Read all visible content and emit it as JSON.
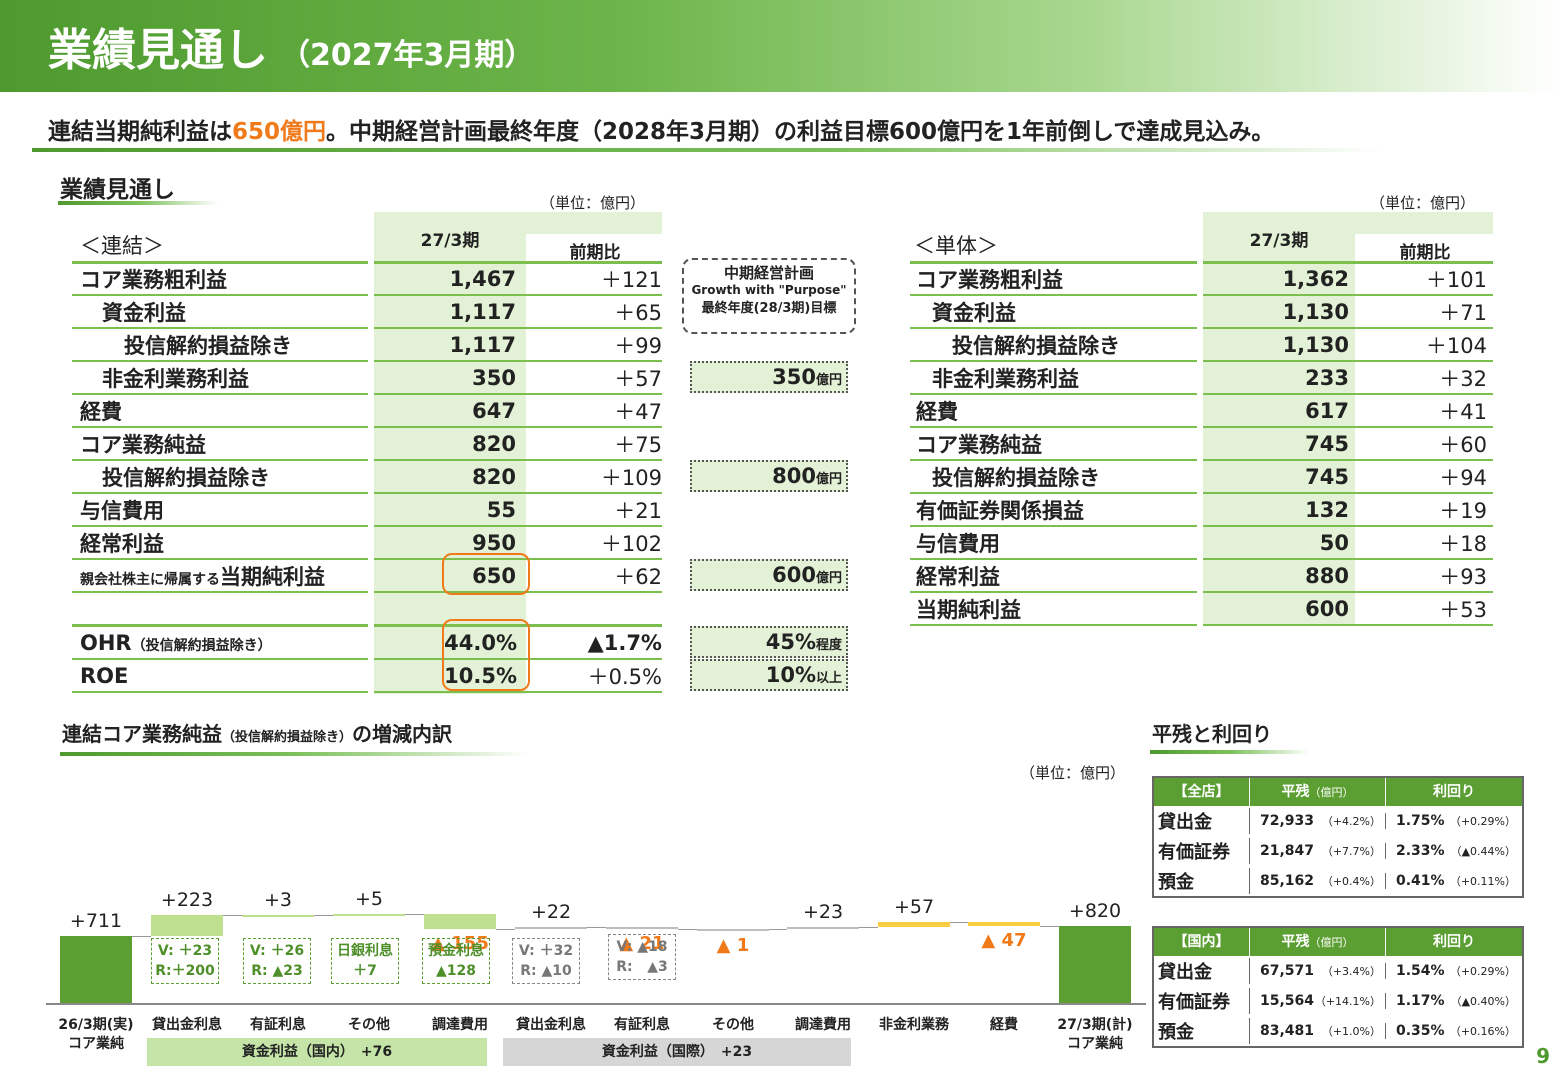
{
  "header": {
    "title": "業績見通し",
    "period": "（2027年3月期）"
  },
  "lead": {
    "pre": "連結当期純利益は",
    "highlight": "650億円",
    "post": "。中期経営計画最終年度（2028年3月期）の利益目標600億円を1年前倒しで達成見込み。"
  },
  "outlook": {
    "title": "業績見通し",
    "consolidated": {
      "label": "＜連結＞",
      "unit": "（単位：億円）",
      "col1": "27/3期",
      "col2": "前期比",
      "rows": [
        {
          "label": "コア業務粗利益",
          "v": "1,467",
          "d": "＋121"
        },
        {
          "label": "資金利益",
          "v": "1,117",
          "d": "＋65"
        },
        {
          "label": "投信解約損益除き",
          "v": "1,117",
          "d": "＋99"
        },
        {
          "label": "非金利業務利益",
          "v": "350",
          "d": "＋57"
        },
        {
          "label": "経費",
          "v": "647",
          "d": "＋47"
        },
        {
          "label": "コア業務純益",
          "v": "820",
          "d": "＋75"
        },
        {
          "label": "投信解約損益除き",
          "v": "820",
          "d": "＋109"
        },
        {
          "label": "与信費用",
          "v": "55",
          "d": "＋21"
        },
        {
          "label": "経常利益",
          "v": "950",
          "d": "＋102"
        },
        {
          "label_small": "親会社株主に帰属する",
          "label": "当期純利益",
          "v": "650",
          "d": "＋62"
        }
      ],
      "ohr": {
        "label": "OHR",
        "label_small": "（投信解約損益除き）",
        "v": "44.0%",
        "d": "▲1.7%"
      },
      "roe": {
        "label": "ROE",
        "v": "10.5%",
        "d": "＋0.5%"
      }
    },
    "plan": {
      "title": "中期経営計画",
      "subtitle": "Growth with \"Purpose\"",
      "caption": "最終年度(28/3期)目標",
      "targets": [
        {
          "v": "350",
          "u": "億円"
        },
        {
          "v": "800",
          "u": "億円"
        },
        {
          "v": "600",
          "u": "億円"
        },
        {
          "v": "45%",
          "u": "程度"
        },
        {
          "v": "10%",
          "u": "以上"
        }
      ]
    },
    "standalone": {
      "label": "＜単体＞",
      "unit": "（単位：億円）",
      "col1": "27/3期",
      "col2": "前期比",
      "rows": [
        {
          "label": "コア業務粗利益",
          "v": "1,362",
          "d": "＋101"
        },
        {
          "label": "資金利益",
          "v": "1,130",
          "d": "＋71"
        },
        {
          "label": "投信解約損益除き",
          "v": "1,130",
          "d": "＋104"
        },
        {
          "label": "非金利業務利益",
          "v": "233",
          "d": "＋32"
        },
        {
          "label": "経費",
          "v": "617",
          "d": "＋41"
        },
        {
          "label": "コア業務純益",
          "v": "745",
          "d": "＋60"
        },
        {
          "label": "投信解約損益除き",
          "v": "745",
          "d": "＋94"
        },
        {
          "label": "有価証券関係損益",
          "v": "132",
          "d": "＋19"
        },
        {
          "label": "与信費用",
          "v": "50",
          "d": "＋18"
        },
        {
          "label": "経常利益",
          "v": "880",
          "d": "＋93"
        },
        {
          "label": "当期純利益",
          "v": "600",
          "d": "＋53"
        }
      ]
    }
  },
  "waterfall": {
    "title_pre": "連結コア業務純益",
    "title_small": "（投信解約損益除き）",
    "title_post": "の増減内訳",
    "unit": "（単位：億円）",
    "labels": [
      "+711",
      "+223",
      "+3",
      "+5",
      "▲ 155",
      "+22",
      "▲ 21",
      "▲ 1",
      "+23",
      "+57",
      "▲ 47",
      "+820"
    ],
    "detail_boxes": [
      "V: ＋23\nR:＋200",
      "V: ＋26\nR: ▲23",
      "日銀利息\n＋7",
      "預金利息\n▲128",
      "V: ＋32\nR: ▲10",
      "V: ▲18\nR:   ▲3"
    ],
    "categories": [
      "26/3期(実)\nコア業純",
      "貸出金利息",
      "有証利息",
      "その他",
      "調達費用",
      "貸出金利息",
      "有証利息",
      "その他",
      "調達費用",
      "非金利業務",
      "経費",
      "27/3期(計)\nコア業純"
    ],
    "bands": [
      {
        "text": "資金利益（国内）　+76"
      },
      {
        "text": "資金利益（国際）　+23"
      }
    ],
    "colors": {
      "base": "#5b9e32",
      "domestic": "#bfe08e",
      "intl": "#bdbdbd",
      "other": "#fbcd40",
      "negative_text": "#f07a1a"
    }
  },
  "chart_data": {
    "type": "bar",
    "title": "",
    "categories": [
      "26/3期(実) コア業純",
      "貸出金利息",
      "有証利息",
      "その他",
      "調達費用",
      "貸出金利息",
      "有証利息",
      "その他",
      "調達費用",
      "非金利業務",
      "経費",
      "27/3期(計) コア業純"
    ],
    "values": [
      711,
      223,
      3,
      5,
      -155,
      22,
      -21,
      -1,
      23,
      57,
      -47,
      820
    ],
    "ylabel": "億円"
  },
  "yields": {
    "title": "平残と利回り",
    "col_bal": "平残",
    "col_bal_unit": "（億円）",
    "col_yield": "利回り",
    "all": {
      "label": "【全店】",
      "rows": [
        {
          "name": "貸出金",
          "bal": "72,933",
          "bal_ch": "（+4.2%）",
          "y": "1.75%",
          "y_ch": "（+0.29%）"
        },
        {
          "name": "有価証券",
          "bal": "21,847",
          "bal_ch": "（+7.7%）",
          "y": "2.33%",
          "y_ch": "（▲0.44%）"
        },
        {
          "name": "預金",
          "bal": "85,162",
          "bal_ch": "（+0.4%）",
          "y": "0.41%",
          "y_ch": "（+0.11%）"
        }
      ]
    },
    "domestic": {
      "label": "【国内】",
      "rows": [
        {
          "name": "貸出金",
          "bal": "67,571",
          "bal_ch": "（+3.4%）",
          "y": "1.54%",
          "y_ch": "（+0.29%）"
        },
        {
          "name": "有価証券",
          "bal": "15,564",
          "bal_ch": "（+14.1%）",
          "y": "1.17%",
          "y_ch": "（▲0.40%）"
        },
        {
          "name": "預金",
          "bal": "83,481",
          "bal_ch": "（+1.0%）",
          "y": "0.35%",
          "y_ch": "（+0.16%）"
        }
      ]
    }
  },
  "page_number": "9"
}
